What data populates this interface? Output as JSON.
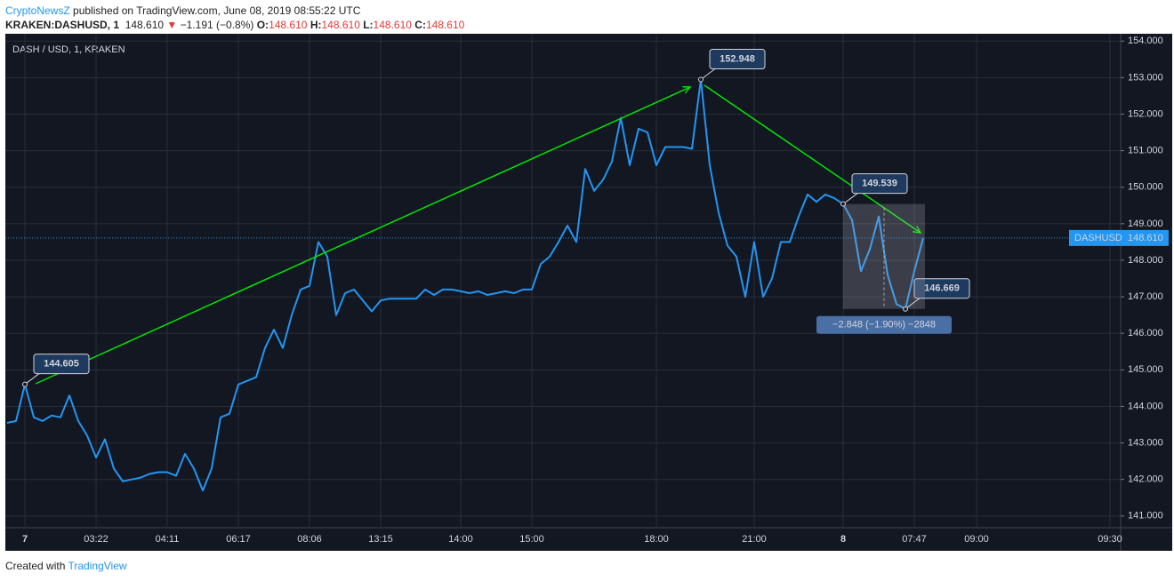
{
  "header": {
    "author": "CryptoNewsZ",
    "published": "published on TradingView.com, June 08, 2019 08:55:22 UTC",
    "symbol": "KRAKEN:DASHUSD, 1",
    "price": "148.610",
    "change": "−1.191 (−0.8%)",
    "ohlc": [
      {
        "label": "O:",
        "value": "148.610"
      },
      {
        "label": "H:",
        "value": "148.610"
      },
      {
        "label": "L:",
        "value": "148.610"
      },
      {
        "label": "C:",
        "value": "148.610"
      }
    ]
  },
  "footer": {
    "created": "Created with",
    "brand": "TradingView"
  },
  "chart_data": {
    "type": "line",
    "title": "DASH / USD, 1, KRAKEN",
    "categories": [
      null,
      null,
      "7",
      null,
      null,
      null,
      null,
      null,
      null,
      null,
      "03:22",
      null,
      null,
      null,
      null,
      null,
      null,
      null,
      "04:11",
      null,
      null,
      null,
      null,
      null,
      null,
      null,
      "06:17",
      null,
      null,
      null,
      null,
      null,
      null,
      null,
      "08:06",
      null,
      null,
      null,
      null,
      null,
      null,
      null,
      "13:15",
      null,
      null,
      null,
      null,
      null,
      null,
      null,
      null,
      "14:00",
      null,
      null,
      null,
      null,
      null,
      null,
      null,
      "15:00",
      null,
      null,
      null,
      null,
      null,
      null,
      null,
      null,
      null,
      null,
      null,
      null,
      null,
      "18:00",
      null,
      null,
      null,
      null,
      null,
      null,
      null,
      null,
      null,
      null,
      "21:00",
      null,
      null,
      null,
      null,
      null,
      null,
      null,
      null,
      null,
      "8",
      null,
      null,
      null,
      null,
      null,
      null,
      null,
      "07:47",
      null,
      null,
      null,
      null,
      null,
      null,
      "09:00",
      null,
      null,
      null,
      null,
      null,
      null,
      null,
      null,
      null,
      null,
      null,
      null,
      null,
      null,
      "09:30",
      null
    ],
    "series": [
      {
        "name": "DASHUSD",
        "color": "#2196f3",
        "values": [
          143.55,
          143.6,
          144.605,
          143.7,
          143.6,
          143.75,
          143.7,
          144.3,
          143.6,
          143.2,
          142.6,
          143.1,
          142.3,
          141.95,
          142.0,
          142.05,
          142.15,
          142.2,
          142.2,
          142.1,
          142.7,
          142.3,
          141.7,
          142.3,
          143.7,
          143.8,
          144.6,
          144.7,
          144.8,
          145.6,
          146.1,
          145.6,
          146.5,
          147.2,
          147.3,
          148.5,
          148.1,
          146.5,
          147.1,
          147.2,
          146.9,
          146.6,
          146.9,
          146.95,
          146.95,
          146.95,
          146.95,
          147.2,
          147.05,
          147.2,
          147.2,
          147.15,
          147.1,
          147.15,
          147.05,
          147.1,
          147.15,
          147.1,
          147.2,
          147.2,
          147.9,
          148.1,
          148.5,
          148.95,
          148.5,
          150.5,
          149.9,
          150.2,
          150.7,
          151.9,
          150.6,
          151.6,
          151.5,
          150.6,
          151.1,
          151.1,
          151.1,
          151.05,
          152.948,
          150.6,
          149.3,
          148.4,
          148.1,
          147.0,
          148.5,
          147.0,
          147.5,
          148.5,
          148.5,
          149.2,
          149.8,
          149.6,
          149.8,
          149.7,
          149.539,
          149.1,
          147.7,
          148.3,
          149.2,
          147.6,
          146.8,
          146.669,
          147.7,
          148.61,
          null,
          null,
          null,
          null,
          null,
          null,
          null,
          null,
          null,
          null,
          null,
          null,
          null,
          null,
          null,
          null,
          null,
          null,
          null,
          null,
          null,
          null
        ]
      }
    ],
    "ylim": [
      140.68,
      154.2
    ],
    "yticks": [
      {
        "value": 141,
        "label": "141.000"
      },
      {
        "value": 142,
        "label": "142.000"
      },
      {
        "value": 143,
        "label": "143.000"
      },
      {
        "value": 144,
        "label": "144.000"
      },
      {
        "value": 145,
        "label": "145.000"
      },
      {
        "value": 146,
        "label": "146.000"
      },
      {
        "value": 147,
        "label": "147.000"
      },
      {
        "value": 148,
        "label": "148.000"
      },
      {
        "value": 149,
        "label": "149.000"
      },
      {
        "value": 150,
        "label": "150.000"
      },
      {
        "value": 151,
        "label": "151.000"
      },
      {
        "value": 152,
        "label": "152.000"
      },
      {
        "value": 153,
        "label": "153.000"
      },
      {
        "value": 154,
        "label": "154.000"
      }
    ],
    "grid": true,
    "annotations": [
      {
        "text": "144.605"
      },
      {
        "text": "152.948"
      },
      {
        "text": "149.539"
      },
      {
        "text": "146.669"
      }
    ],
    "measure": {
      "text": "−2.848 (−1.90%) −2848"
    },
    "price_label": {
      "symbol": "DASHUSD",
      "value": "148.610"
    }
  }
}
